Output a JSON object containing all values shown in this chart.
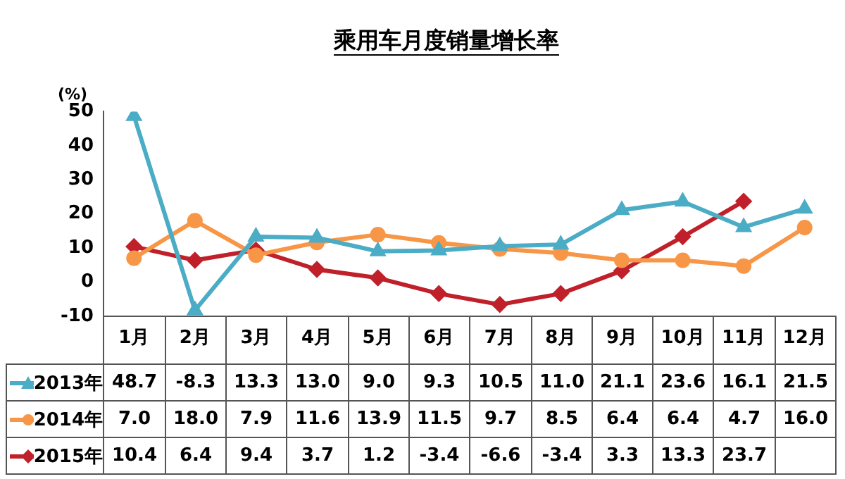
{
  "chart_data": {
    "type": "line",
    "title": "乘用车月度销量增长率",
    "ylabel": "(%)",
    "categories": [
      "1月",
      "2月",
      "3月",
      "4月",
      "5月",
      "6月",
      "7月",
      "8月",
      "9月",
      "10月",
      "11月",
      "12月"
    ],
    "series": [
      {
        "name": "2013年",
        "color": "#4bacc6",
        "marker": "triangle",
        "values": [
          48.7,
          -8.3,
          13.3,
          13.0,
          9.0,
          9.3,
          10.5,
          11.0,
          21.1,
          23.6,
          16.1,
          21.5
        ],
        "value_labels": [
          "48.7",
          "-8.3",
          "13.3",
          "13.0",
          "9.0",
          "9.3",
          "10.5",
          "11.0",
          "21.1",
          "23.6",
          "16.1",
          "21.5"
        ]
      },
      {
        "name": "2014年",
        "color": "#f79646",
        "marker": "circle",
        "values": [
          7.0,
          18.0,
          7.9,
          11.6,
          13.9,
          11.5,
          9.7,
          8.5,
          6.4,
          6.4,
          4.7,
          16.0
        ],
        "value_labels": [
          "7.0",
          "18.0",
          "7.9",
          "11.6",
          "13.9",
          "11.5",
          "9.7",
          "8.5",
          "6.4",
          "6.4",
          "4.7",
          "16.0"
        ]
      },
      {
        "name": "2015年",
        "color": "#c0202a",
        "marker": "diamond",
        "values": [
          10.4,
          6.4,
          9.4,
          3.7,
          1.2,
          -3.4,
          -6.6,
          -3.4,
          3.3,
          13.3,
          23.7,
          null
        ],
        "value_labels": [
          "10.4",
          "6.4",
          "9.4",
          "3.7",
          "1.2",
          "-3.4",
          "-6.6",
          "-3.4",
          "3.3",
          "13.3",
          "23.7",
          null
        ]
      }
    ],
    "ylim": [
      -10,
      50
    ],
    "yticks": [
      -10,
      0,
      10,
      20,
      30,
      40,
      50
    ],
    "grid": false,
    "legend": "bottom",
    "line_style": "solid"
  }
}
